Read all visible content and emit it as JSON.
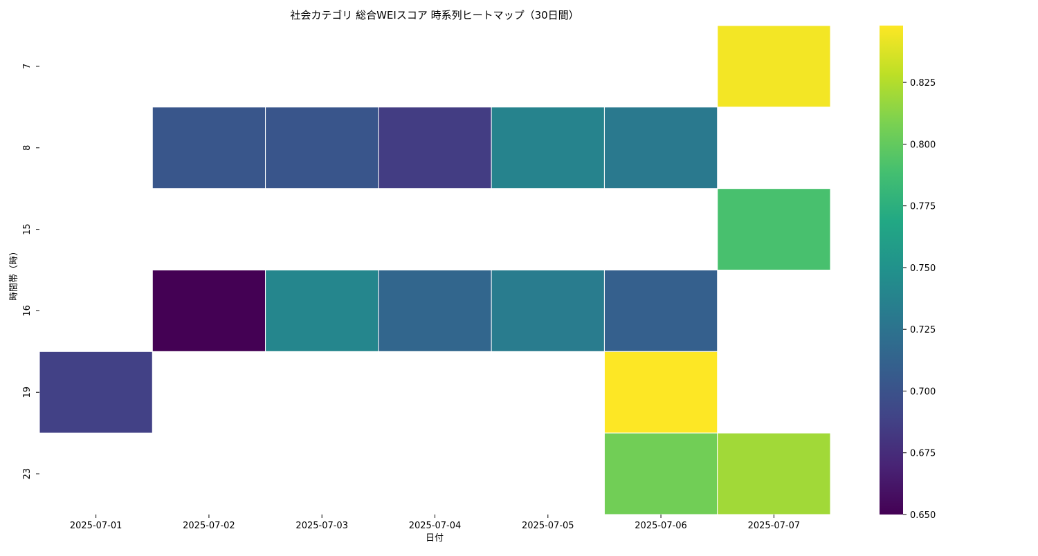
{
  "chart_data": {
    "type": "heatmap",
    "title": "社会カテゴリ 総合WEIスコア 時系列ヒートマップ（30日間）",
    "xlabel": "日付",
    "ylabel": "時間帯（時）",
    "x_categories": [
      "2025-07-01",
      "2025-07-02",
      "2025-07-03",
      "2025-07-04",
      "2025-07-05",
      "2025-07-06",
      "2025-07-07"
    ],
    "y_categories": [
      "7",
      "8",
      "15",
      "16",
      "19",
      "23"
    ],
    "values": [
      [
        null,
        null,
        null,
        null,
        null,
        null,
        0.845
      ],
      [
        null,
        0.703,
        0.702,
        0.685,
        0.738,
        0.73,
        null
      ],
      [
        null,
        null,
        null,
        null,
        null,
        null,
        0.79
      ],
      [
        null,
        0.65,
        0.74,
        0.715,
        0.732,
        0.71,
        null
      ],
      [
        0.688,
        null,
        null,
        null,
        null,
        0.848,
        null
      ],
      [
        null,
        null,
        null,
        null,
        null,
        0.805,
        0.82
      ]
    ],
    "colormap": "viridis",
    "color_range": [
      0.65,
      0.848
    ],
    "colorbar_ticks": [
      "0.650",
      "0.675",
      "0.700",
      "0.725",
      "0.750",
      "0.775",
      "0.800",
      "0.825"
    ],
    "grid": false,
    "legend": "colorbar-right"
  }
}
